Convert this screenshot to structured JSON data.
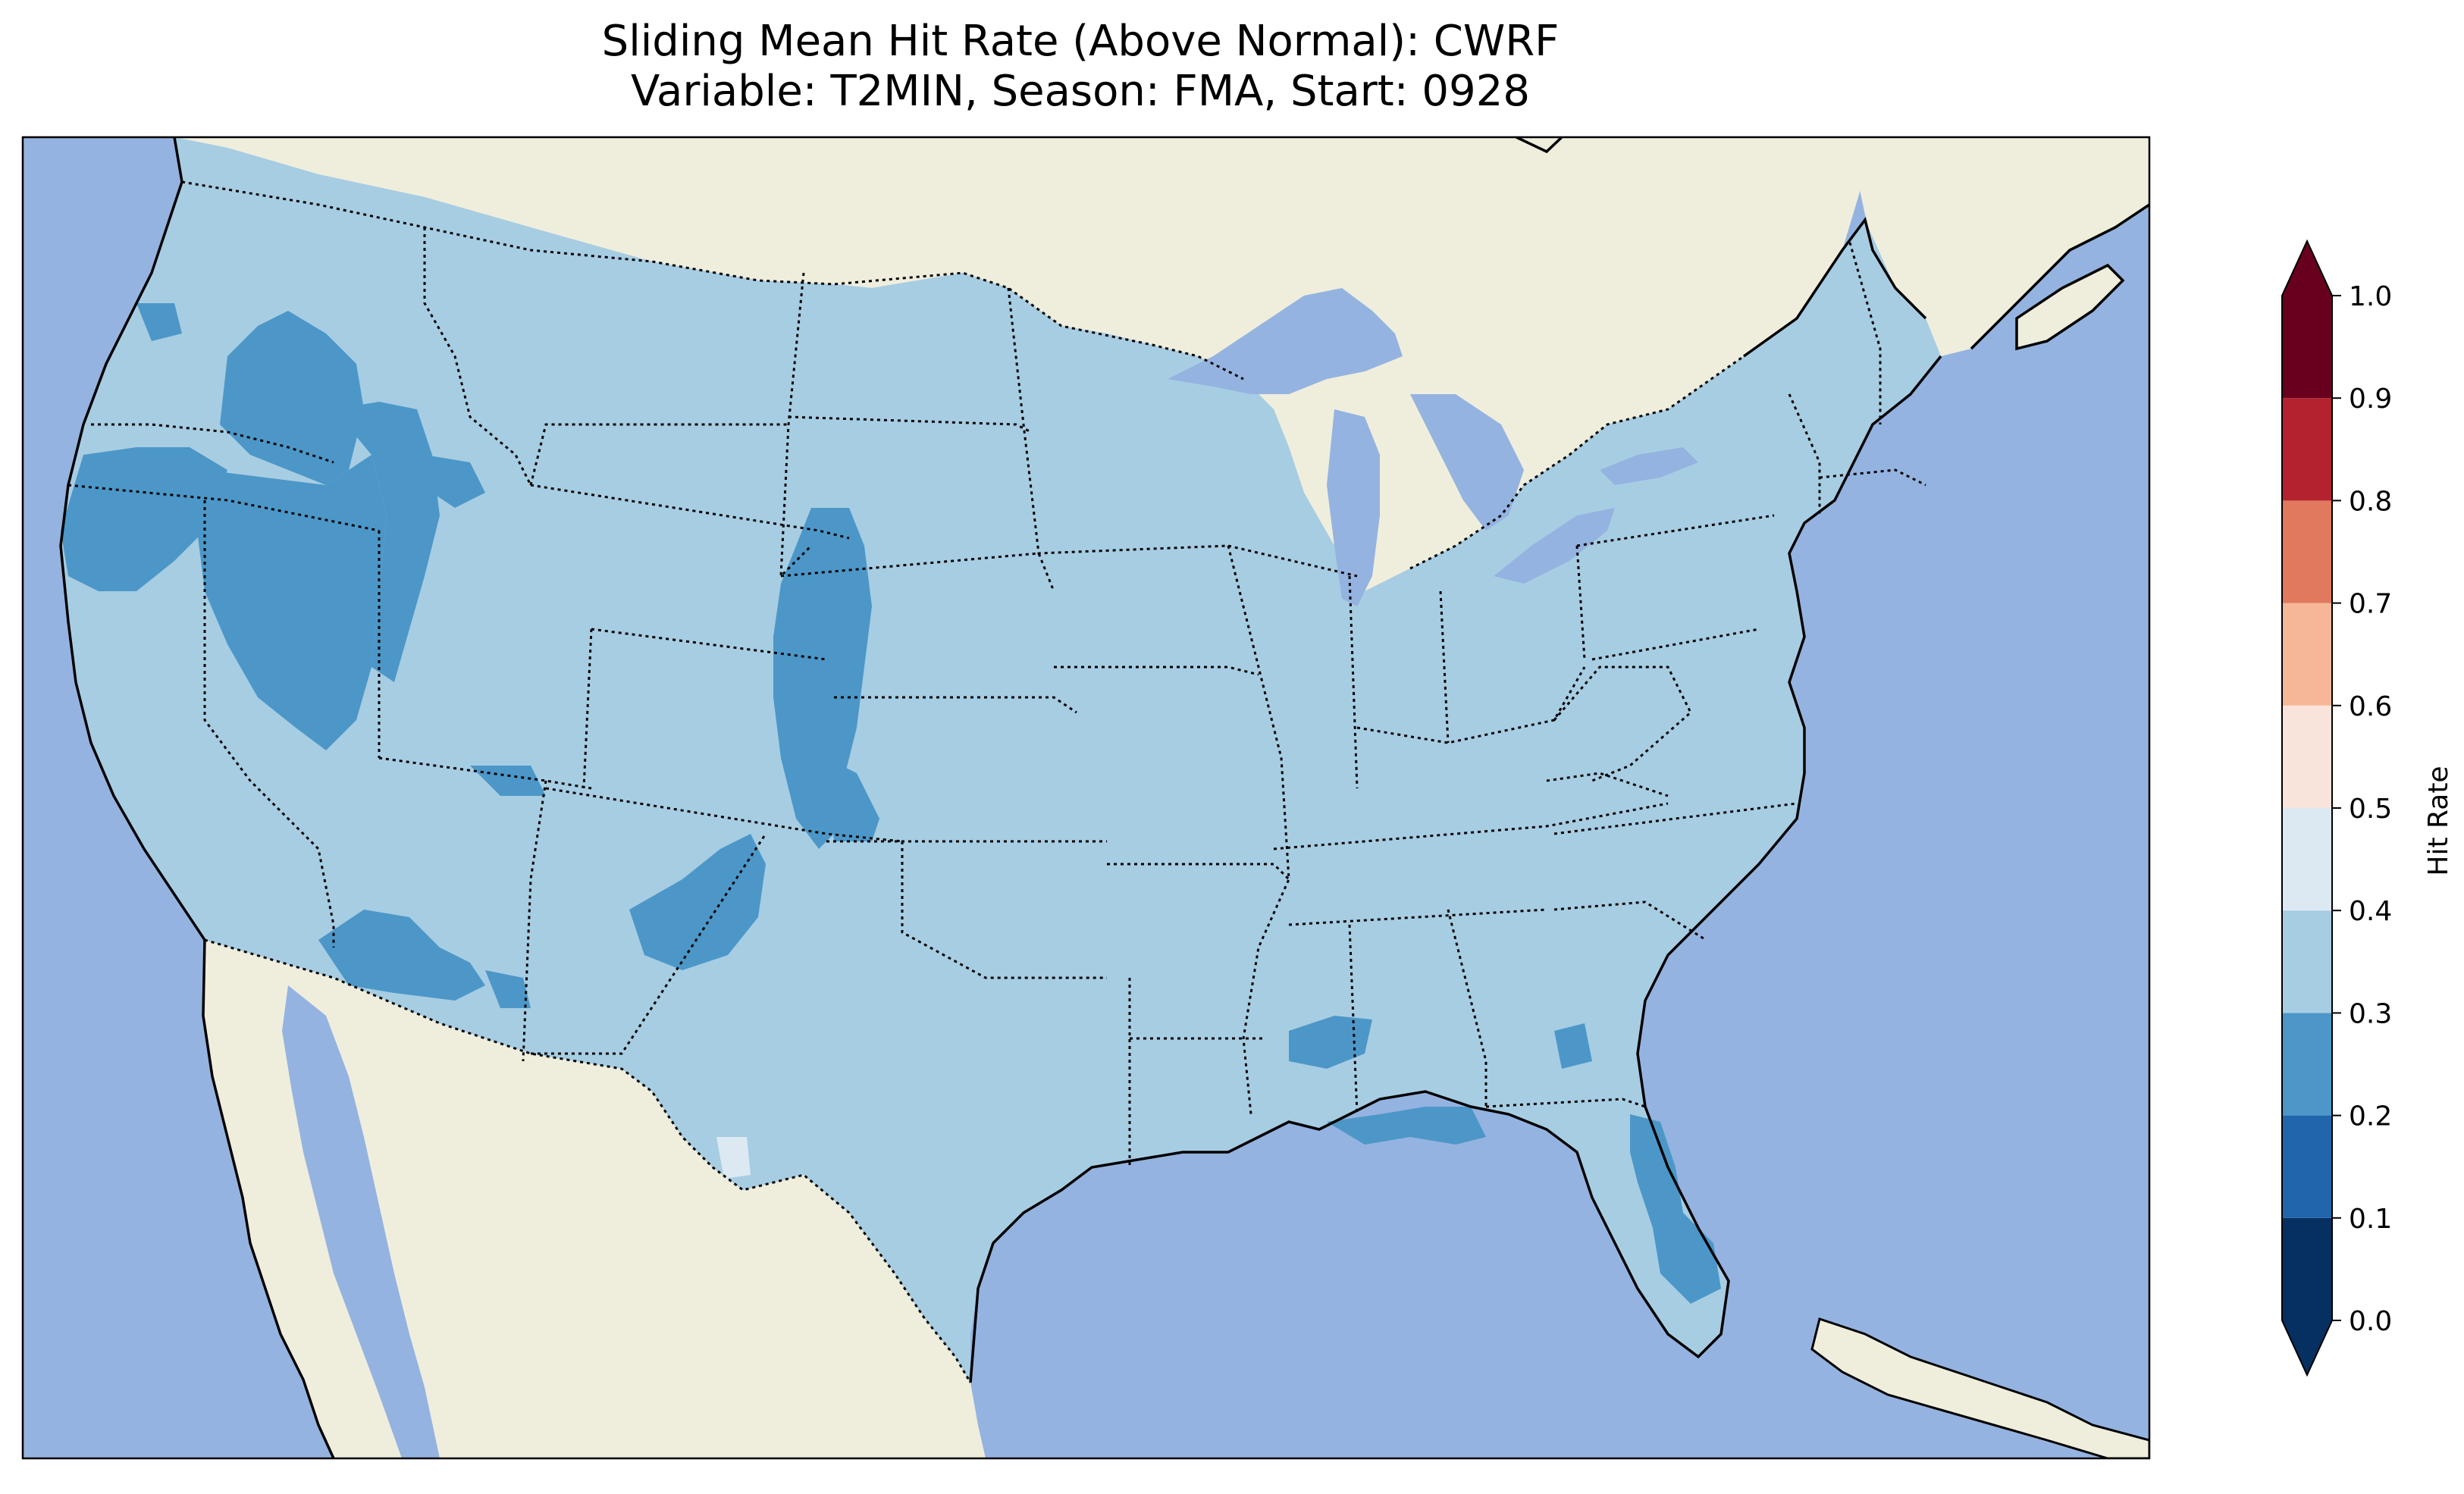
{
  "title": {
    "line1": "Sliding Mean Hit Rate (Above Normal): CWRF",
    "line2": "Variable: T2MIN, Season: FMA, Start: 0928"
  },
  "colors": {
    "ocean": "#94b3e0",
    "land": "#efeedd",
    "lakes": "#94b3e0",
    "coast": "#000000",
    "state_border": "#000000"
  },
  "field_classes": {
    "dominant": "0.3–0.4",
    "secondary": "0.2–0.3",
    "rare": "0.4–0.5"
  },
  "colorbar": {
    "label": "Hit Rate",
    "bounds": [
      0.0,
      0.1,
      0.2,
      0.3,
      0.4,
      0.5,
      0.6,
      0.7,
      0.8,
      0.9,
      1.0
    ],
    "tick_labels": [
      "0.0",
      "0.1",
      "0.2",
      "0.3",
      "0.4",
      "0.5",
      "0.6",
      "0.7",
      "0.8",
      "0.9",
      "1.0"
    ],
    "colors": [
      "#053061",
      "#2166ac",
      "#4393c3",
      "#92c5de",
      "#d1e5f0",
      "#f7f7f7",
      "#fddbc7",
      "#f4a582",
      "#d6604d",
      "#b2182b",
      "#67001f"
    ],
    "under_color": "#053061",
    "over_color": "#67001f",
    "bins": [
      {
        "range": "0.0–0.1",
        "color": "#053061"
      },
      {
        "range": "0.1–0.2",
        "color": "#2166ac"
      },
      {
        "range": "0.2–0.3",
        "color": "#4c97c8"
      },
      {
        "range": "0.3–0.4",
        "color": "#a7cde3"
      },
      {
        "range": "0.4–0.5",
        "color": "#dde9f2"
      },
      {
        "range": "0.5–0.6",
        "color": "#f8e4da"
      },
      {
        "range": "0.6–0.7",
        "color": "#f5b797"
      },
      {
        "range": "0.7–0.8",
        "color": "#e0795e"
      },
      {
        "range": "0.8–0.9",
        "color": "#b42230"
      },
      {
        "range": "0.9–1.0",
        "color": "#67001f"
      }
    ]
  }
}
